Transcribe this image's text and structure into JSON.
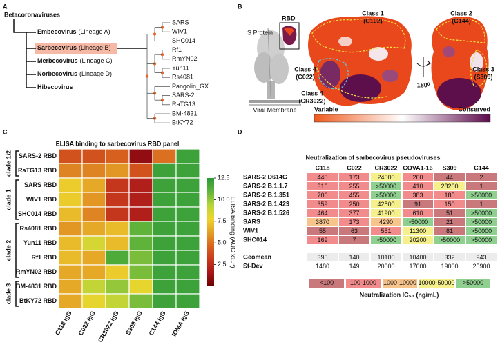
{
  "panel_labels": [
    "A",
    "B",
    "C",
    "D"
  ],
  "tree": {
    "root": "Betacoronaviruses",
    "lineages": [
      {
        "name": "Embecovirus",
        "note": "(Lineage A)"
      },
      {
        "name": "Sarbecovirus",
        "note": "(Lineage B)"
      },
      {
        "name": "Merbecovirus",
        "note": "(Lineage C)"
      },
      {
        "name": "Norbecovirus",
        "note": "(Lineage D)"
      },
      {
        "name": "Hibecovirus"
      }
    ],
    "leaves": [
      "SARS",
      "WIV1",
      "SHC014",
      "Rf1",
      "RmYN02",
      "Yun11",
      "Rs4081",
      "Pangolin_GX",
      "SARS-2",
      "RaTG13",
      "BM-4831",
      "BtKY72"
    ]
  },
  "structure": {
    "protein": "S Protein",
    "rbd": "RBD",
    "membrane": "Viral Membrane",
    "rotation": "180⁰",
    "classes": [
      {
        "lines": [
          "Class 1",
          "(C102)"
        ],
        "color": "#c9a93a"
      },
      {
        "lines": [
          "Class 2",
          "(C144)"
        ],
        "color": "#c9a93a"
      },
      {
        "lines": [
          "Class 3",
          "(S309)"
        ],
        "color": "#c9a93a"
      },
      {
        "lines": [
          "Class 4",
          "(C022)"
        ],
        "color": "#3b9bb5"
      },
      {
        "lines": [
          "Class 4",
          "(CR3022)"
        ],
        "color": "#c9a93a"
      }
    ],
    "scale": {
      "low": "Variable",
      "high": "Conserved",
      "colors": [
        "#ef5a1c",
        "#ffffff",
        "#5c0a4c"
      ]
    }
  },
  "chart_data": {
    "type": "heatmap",
    "title": "ELISA binding to sarbecovirus RBD panel",
    "rows": [
      "SARS-2 RBD",
      "RaTG13 RBD",
      "SARS RBD",
      "WIV1 RBD",
      "SHC014 RBD",
      "Rs4081 RBD",
      "Yun11 RBD",
      "Rf1 RBD",
      "RmYN02 RBD",
      "BM-4831 RBD",
      "BtKY72 RBD"
    ],
    "row_groups": [
      "clade 1/2",
      "clade 1/2",
      "clade 1",
      "clade 1",
      "clade 1",
      "clade 2",
      "clade 2",
      "clade 2",
      "clade 2",
      "clade 3",
      "clade 3"
    ],
    "columns": [
      "C118 IgG",
      "C022 IgG",
      "CR3022 IgG",
      "S309 IgG",
      "C144 IgG",
      "IOMA IgG"
    ],
    "values": [
      [
        4,
        4,
        4.5,
        1,
        5,
        12
      ],
      [
        5.5,
        5.5,
        6,
        4,
        12,
        12
      ],
      [
        7.5,
        6.5,
        3,
        2,
        12,
        12
      ],
      [
        7.5,
        6,
        3,
        2,
        12,
        12
      ],
      [
        7,
        5.5,
        3,
        2,
        12,
        12
      ],
      [
        6,
        6.5,
        7,
        11,
        12,
        12
      ],
      [
        7,
        8.5,
        7,
        11,
        12,
        12
      ],
      [
        7,
        6.5,
        11.5,
        10.5,
        12,
        12
      ],
      [
        6.5,
        6.5,
        7.5,
        10.5,
        12,
        12
      ],
      [
        6.5,
        9,
        10,
        8,
        12,
        12
      ],
      [
        6.5,
        8,
        9,
        10.5,
        12,
        12
      ]
    ],
    "clim": [
      0,
      12.5
    ],
    "cticks": [
      2.5,
      {
        "value": 5,
        "label": "5.0"
      },
      7.5,
      {
        "value": 10,
        "label": "10.0"
      },
      12.5
    ],
    "clabel": "ELISA binding (AUC x10³)",
    "colorscale": [
      "#6b0000",
      "#a8141a",
      "#c83a1c",
      "#d9651e",
      "#e4a126",
      "#eed52e",
      "#b6d43a",
      "#62b43a",
      "#2a9a38"
    ]
  },
  "table": {
    "title": "Neutralization of sarbecovirus pseudoviruses",
    "columns": [
      "C118",
      "C022",
      "CR3022",
      "COVA1-16",
      "S309",
      "C144"
    ],
    "rows": [
      {
        "label": "SARS-2 D614G",
        "cells": [
          "440",
          "173",
          "24500",
          "260",
          "44",
          "2"
        ],
        "colors": [
          "#f28b8b",
          "#f28b8b",
          "#f6f08c",
          "#f28b8b",
          "#c9787c",
          "#c9787c"
        ]
      },
      {
        "label": "SARS-2 B.1.1.7",
        "cells": [
          "316",
          "255",
          ">50000",
          "410",
          "28200",
          "1"
        ],
        "colors": [
          "#f28b8b",
          "#f28b8b",
          "#8fcf8f",
          "#f28b8b",
          "#f6f08c",
          "#c9787c"
        ]
      },
      {
        "label": "SARS-2 B.1.351",
        "cells": [
          "706",
          "455",
          ">50000",
          "383",
          "185",
          ">50000"
        ],
        "colors": [
          "#f28b8b",
          "#f28b8b",
          "#8fcf8f",
          "#f28b8b",
          "#f28b8b",
          "#8fcf8f"
        ]
      },
      {
        "label": "SARS-2 B.1.429",
        "cells": [
          "359",
          "250",
          "42500",
          "91",
          "150",
          "1"
        ],
        "colors": [
          "#f28b8b",
          "#f28b8b",
          "#f6f08c",
          "#c9787c",
          "#f28b8b",
          "#c9787c"
        ]
      },
      {
        "label": "SARS-2 B.1.526",
        "cells": [
          "464",
          "377",
          "41900",
          "610",
          "51",
          ">50000"
        ],
        "colors": [
          "#f28b8b",
          "#f28b8b",
          "#f6f08c",
          "#f28b8b",
          "#c9787c",
          "#8fcf8f"
        ]
      },
      {
        "label": "SARS",
        "cells": [
          "3870",
          "173",
          "4290",
          ">50000",
          "21",
          ">50000"
        ],
        "colors": [
          "#f7c48c",
          "#f28b8b",
          "#f7c48c",
          "#8fcf8f",
          "#c9787c",
          "#8fcf8f"
        ]
      },
      {
        "label": "WIV1",
        "cells": [
          "55",
          "63",
          "551",
          "11300",
          "81",
          ">50000"
        ],
        "colors": [
          "#c9787c",
          "#c9787c",
          "#f28b8b",
          "#f6f08c",
          "#c9787c",
          "#8fcf8f"
        ]
      },
      {
        "label": "SHC014",
        "cells": [
          "169",
          "7",
          ">50000",
          "20200",
          ">50000",
          ">50000"
        ],
        "colors": [
          "#f28b8b",
          "#c9787c",
          "#8fcf8f",
          "#f6f08c",
          "#8fcf8f",
          "#8fcf8f"
        ]
      }
    ],
    "summary": [
      {
        "label": "Geomean",
        "cells": [
          "395",
          "140",
          "10100",
          "10400",
          "332",
          "943"
        ]
      },
      {
        "label": "St-Dev",
        "cells": [
          "1480",
          "149",
          "20000",
          "17600",
          "19000",
          "25900"
        ]
      }
    ],
    "legend": [
      {
        "label": "<100",
        "color": "#c9787c"
      },
      {
        "label": "100-1000",
        "color": "#f28b8b"
      },
      {
        "label": "1000-10000",
        "color": "#f7c48c"
      },
      {
        "label": "10000-50000",
        "color": "#f6f08c"
      },
      {
        "label": ">50000",
        "color": "#8fcf8f"
      }
    ],
    "legend_title": "Neutralization IC₅₀ (ng/mL)"
  }
}
